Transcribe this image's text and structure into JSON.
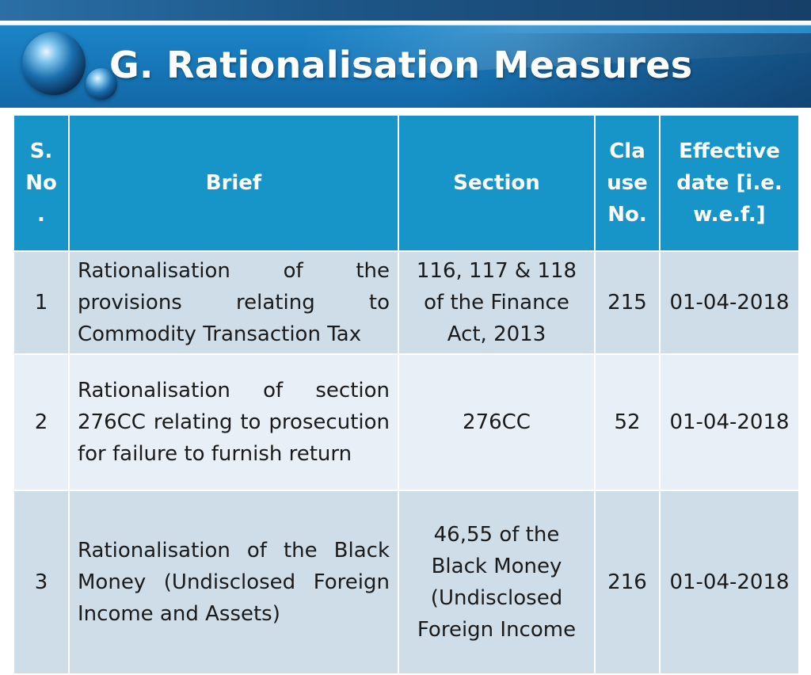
{
  "slide": {
    "title": "G. Rationalisation Measures"
  },
  "table": {
    "headers": {
      "sno": "S. No .",
      "brief": "Brief",
      "section": "Section",
      "clause": "Cla use No.",
      "date": "Effective date [i.e. w.e.f.]"
    },
    "rows": [
      {
        "sno": "1",
        "brief": "Rationalisation of the provisions relating to Commodity Transaction Tax",
        "section": "116, 117 & 118 of the Finance Act, 2013",
        "clause": "215",
        "date": "01-04-2018"
      },
      {
        "sno": "2",
        "brief": "Rationalisation of section 276CC relating to prosecution for failure to furnish return",
        "section": "276CC",
        "clause": "52",
        "date": "01-04-2018"
      },
      {
        "sno": "3",
        "brief": "Rationalisation of the Black Money (Undisclosed Foreign Income and Assets)",
        "section": "46,55 of the Black Money (Undisclosed Foreign Income",
        "clause": "216",
        "date": "01-04-2018"
      }
    ]
  },
  "colors": {
    "header_blue": "#1794c8",
    "row_dark": "#cfdde9",
    "row_light": "#e8eff6",
    "banner_blue": "#1675b6"
  }
}
